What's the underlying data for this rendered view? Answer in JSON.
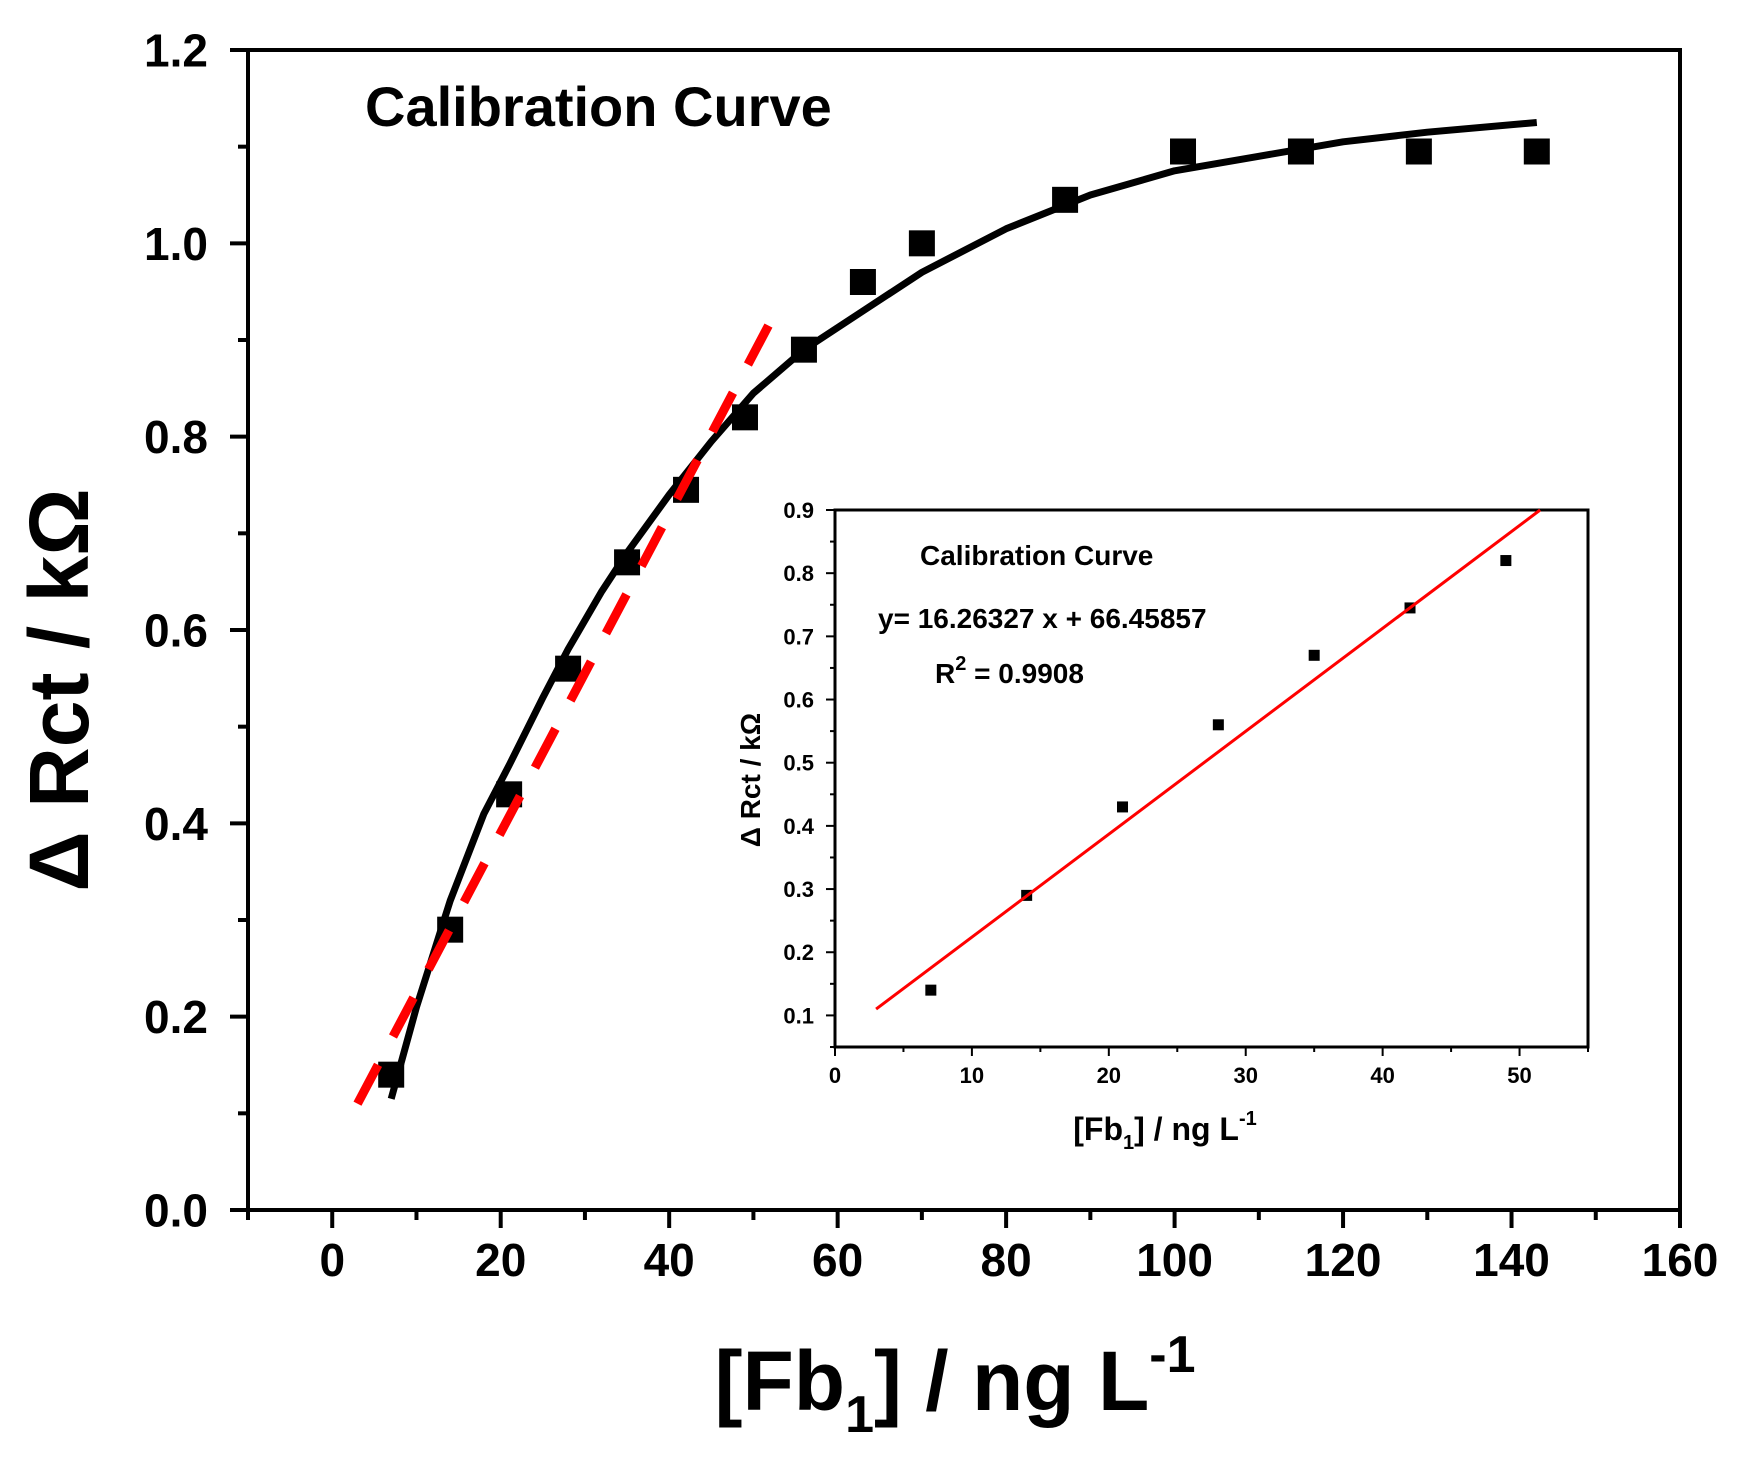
{
  "chart_data": [
    {
      "type": "scatter",
      "panel": "main",
      "title": "Calibration Curve",
      "xlabel": {
        "main": "[Fb",
        "sub": "1",
        "rest": "] / ng L",
        "sup": "-1"
      },
      "ylabel": "Δ Rct / kΩ",
      "xlim": [
        -10,
        160
      ],
      "ylim": [
        0,
        1.2
      ],
      "x_ticks": [
        "0",
        "20",
        "40",
        "60",
        "80",
        "100",
        "120",
        "140",
        "160"
      ],
      "y_ticks": [
        "0.0",
        "0.2",
        "0.4",
        "0.6",
        "0.8",
        "1.0",
        "1.2"
      ],
      "grid": false,
      "colors": {
        "points": "#000000",
        "fit_curve": "#000000",
        "linear_fit": "#ff0000"
      },
      "series": [
        {
          "kind": "points",
          "x": [
            7,
            14,
            21,
            28,
            35,
            42,
            49,
            56,
            63,
            70,
            87,
            101,
            115,
            129,
            143
          ],
          "y": [
            0.14,
            0.29,
            0.43,
            0.56,
            0.67,
            0.745,
            0.82,
            0.89,
            0.96,
            1.0,
            1.045,
            1.095,
            1.095,
            1.095,
            1.095
          ]
        },
        {
          "kind": "fit-curve",
          "x": [
            7,
            10,
            14,
            18,
            21,
            25,
            28,
            32,
            35,
            40,
            45,
            50,
            56,
            63,
            70,
            80,
            90,
            100,
            110,
            120,
            130,
            143
          ],
          "y": [
            0.115,
            0.21,
            0.32,
            0.41,
            0.46,
            0.53,
            0.58,
            0.64,
            0.68,
            0.74,
            0.795,
            0.845,
            0.89,
            0.93,
            0.97,
            1.015,
            1.05,
            1.075,
            1.09,
            1.105,
            1.115,
            1.125
          ]
        },
        {
          "kind": "linear-fit-dashed",
          "x": [
            3,
            53
          ],
          "y": [
            0.11,
            0.935
          ]
        }
      ]
    },
    {
      "type": "scatter",
      "panel": "inset",
      "title": "Calibration Curve",
      "annotations": {
        "equation": "y= 16.26327 x + 66.45857",
        "r2_prefix": "R",
        "r2_sup": "2",
        "r2_value": " = 0.9908"
      },
      "xlabel": {
        "main": "[Fb",
        "sub": "1",
        "rest": "] / ng L",
        "sup": "-1"
      },
      "ylabel": "Δ Rct / kΩ",
      "xlim": [
        0,
        55
      ],
      "ylim": [
        0.05,
        0.9
      ],
      "x_ticks": [
        "0",
        "10",
        "20",
        "30",
        "40",
        "50"
      ],
      "y_ticks": [
        "0.1",
        "0.2",
        "0.3",
        "0.4",
        "0.5",
        "0.6",
        "0.7",
        "0.8",
        "0.9"
      ],
      "grid": false,
      "colors": {
        "points": "#000000",
        "linear_fit": "#ff0000"
      },
      "series": [
        {
          "kind": "points",
          "x": [
            7,
            14,
            21,
            28,
            35,
            42,
            49
          ],
          "y": [
            0.14,
            0.29,
            0.43,
            0.56,
            0.67,
            0.745,
            0.82
          ]
        },
        {
          "kind": "linear-fit",
          "x": [
            3,
            51.5
          ],
          "y": [
            0.11,
            0.9
          ]
        }
      ]
    }
  ]
}
